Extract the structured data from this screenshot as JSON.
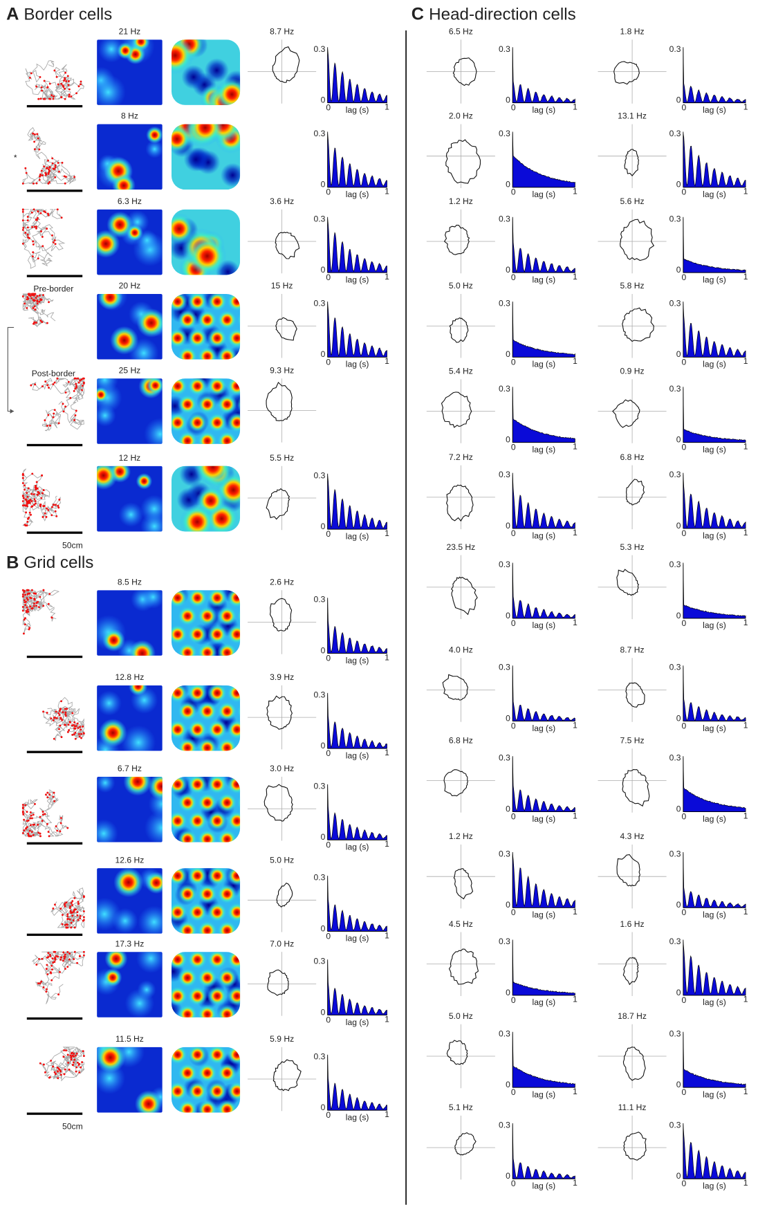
{
  "panels": [
    {
      "label": "A",
      "title": "Border cells",
      "scale_label": "50cm",
      "rows": [
        {
          "rate_label": "21 Hz",
          "hd_label": "8.7 Hz"
        },
        {
          "rate_label": "8 Hz",
          "note": "*"
        },
        {
          "rate_label": "6.3 Hz",
          "hd_label": "3.6 Hz"
        },
        {
          "rate_label": "20 Hz",
          "hd_label": "15 Hz",
          "condition": "Pre-border"
        },
        {
          "rate_label": "25 Hz",
          "hd_label": "9.3 Hz",
          "condition": "Post-border"
        },
        {
          "rate_label": "12 Hz",
          "hd_label": "5.5 Hz"
        }
      ]
    },
    {
      "label": "B",
      "title": "Grid cells",
      "scale_label": "50cm",
      "rows": [
        {
          "rate_label": "8.5 Hz",
          "hd_label": "2.6 Hz"
        },
        {
          "rate_label": "12.8 Hz",
          "hd_label": "3.9 Hz"
        },
        {
          "rate_label": "6.7 Hz",
          "hd_label": "3.0 Hz"
        },
        {
          "rate_label": "12.6 Hz",
          "hd_label": "5.0 Hz"
        },
        {
          "rate_label": "17.3 Hz",
          "hd_label": "7.0 Hz"
        },
        {
          "rate_label": "11.5 Hz",
          "hd_label": "5.9 Hz"
        }
      ]
    },
    {
      "label": "C",
      "title": "Head-direction cells",
      "columns": [
        {
          "rows": [
            {
              "hd_label": "6.5 Hz"
            },
            {
              "hd_label": "2.0 Hz"
            },
            {
              "hd_label": "1.2 Hz"
            },
            {
              "hd_label": "5.0 Hz"
            },
            {
              "hd_label": "5.4 Hz"
            },
            {
              "hd_label": "7.2 Hz"
            },
            {
              "hd_label": "23.5 Hz"
            },
            {
              "hd_label": "4.0 Hz"
            },
            {
              "hd_label": "6.8 Hz"
            },
            {
              "hd_label": "1.2 Hz"
            },
            {
              "hd_label": "4.5 Hz"
            },
            {
              "hd_label": "5.0 Hz"
            },
            {
              "hd_label": "5.1 Hz"
            }
          ]
        },
        {
          "rows": [
            {
              "hd_label": "1.8 Hz"
            },
            {
              "hd_label": "13.1 Hz"
            },
            {
              "hd_label": "5.6 Hz"
            },
            {
              "hd_label": "5.8 Hz"
            },
            {
              "hd_label": "0.9 Hz"
            },
            {
              "hd_label": "6.8 Hz"
            },
            {
              "hd_label": "5.3 Hz"
            },
            {
              "hd_label": "8.7 Hz"
            },
            {
              "hd_label": "7.5 Hz"
            },
            {
              "hd_label": "4.3 Hz"
            },
            {
              "hd_label": "1.6 Hz"
            },
            {
              "hd_label": "18.7 Hz"
            },
            {
              "hd_label": "11.1 Hz"
            }
          ]
        }
      ]
    }
  ],
  "autocorrelogram_axis": {
    "y_max": 0.3,
    "y_min": 0,
    "x_min": 0,
    "x_max": 1,
    "x_title": "lag (s)"
  }
}
